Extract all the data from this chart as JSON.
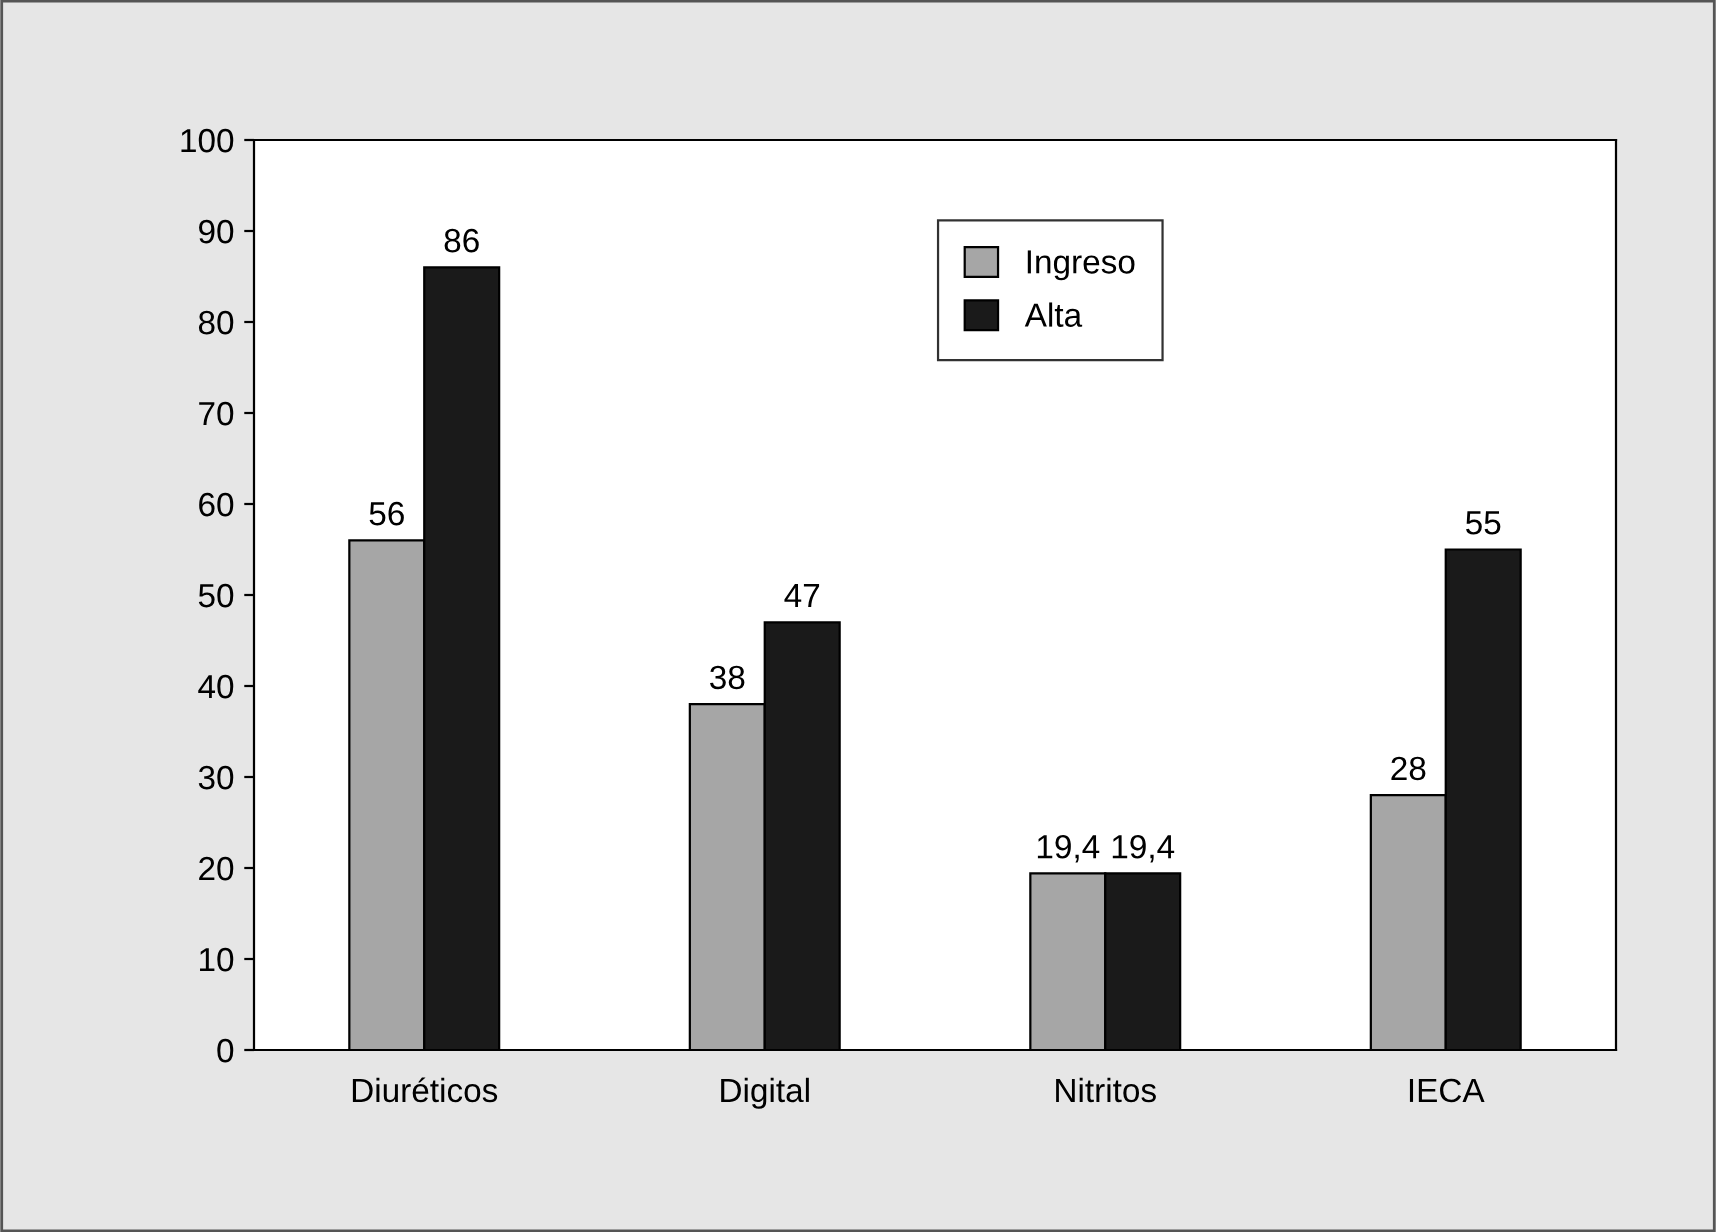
{
  "chart_data": {
    "type": "bar",
    "categories": [
      "Diuréticos",
      "Digital",
      "Nitritos",
      "IECA"
    ],
    "series": [
      {
        "name": "Ingreso",
        "color": "#a6a6a6",
        "values": [
          56,
          38,
          19.4,
          28
        ],
        "value_labels": [
          "56",
          "38",
          "19,4",
          "28"
        ]
      },
      {
        "name": "Alta",
        "color": "#1a1a1a",
        "values": [
          86,
          47,
          19.4,
          55
        ],
        "value_labels": [
          "86",
          "47",
          "19,4",
          "55"
        ]
      }
    ],
    "ylim": [
      0,
      100
    ],
    "yticks": [
      0,
      10,
      20,
      30,
      40,
      50,
      60,
      70,
      80,
      90,
      100
    ],
    "grid": false,
    "legend": "top"
  }
}
